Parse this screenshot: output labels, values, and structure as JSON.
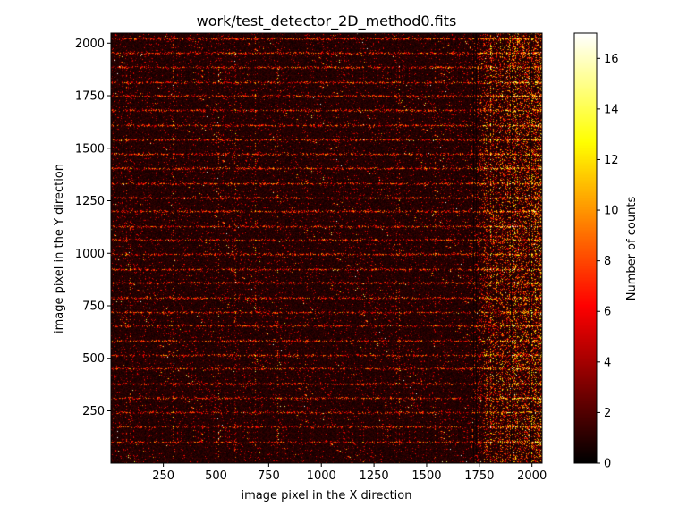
{
  "chart_data": {
    "type": "heatmap",
    "title": "work/test_detector_2D_method0.fits",
    "xlabel": "image pixel in the X direction",
    "ylabel": "image pixel in the Y direction",
    "xlim": [
      1,
      2048
    ],
    "ylim": [
      1,
      2048
    ],
    "x_ticks": [
      250,
      500,
      750,
      1000,
      1250,
      1500,
      1750,
      2000
    ],
    "x_tick_labels": [
      "250",
      "500",
      "750",
      "1000",
      "1250",
      "1500",
      "1750",
      "2000"
    ],
    "y_ticks": [
      250,
      500,
      750,
      1000,
      1250,
      1500,
      1750,
      2000
    ],
    "y_tick_labels": [
      "250",
      "500",
      "750",
      "1000",
      "1250",
      "1500",
      "1750",
      "2000"
    ],
    "colormap": "hot",
    "colorbar": {
      "label": "Number of counts",
      "range": [
        0,
        17
      ],
      "ticks": [
        0,
        2,
        4,
        6,
        8,
        10,
        12,
        14,
        16
      ],
      "tick_labels": [
        "0",
        "2",
        "4",
        "6",
        "8",
        "10",
        "12",
        "14",
        "16"
      ]
    },
    "pattern": {
      "bright_rows_approx": [
        2024,
        1955,
        1885,
        1815,
        1750,
        1680,
        1610,
        1540,
        1475,
        1405,
        1335,
        1265,
        1200,
        1130,
        1065,
        995,
        925,
        860,
        790,
        720,
        655,
        585,
        515,
        450,
        380,
        310,
        245,
        175,
        105
      ],
      "dense_region_x_start": 1700,
      "dense_region_x_end": 2048
    },
    "grid": false
  }
}
